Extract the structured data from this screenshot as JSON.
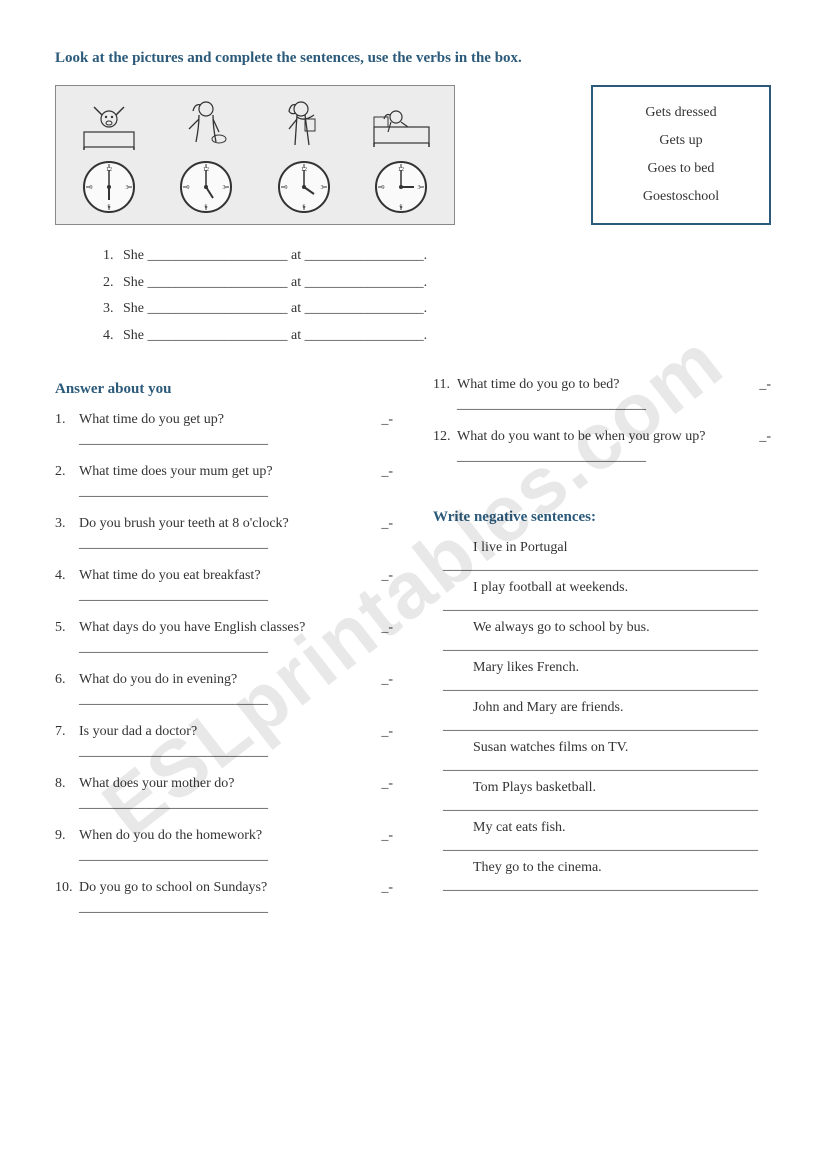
{
  "title": "Look at the pictures and complete the sentences, use the verbs in the box.",
  "verb_box": [
    "Gets dressed",
    "Gets up",
    "Goes to bed",
    "Goestoschool"
  ],
  "clocks": [
    {
      "hour": 6,
      "minute": 0
    },
    {
      "hour": 7,
      "minute": 0
    },
    {
      "hour": 8,
      "minute": 0
    },
    {
      "hour": 9,
      "minute": 0
    }
  ],
  "fill_sentences": [
    {
      "n": "1.",
      "text": "She ____________________ at _________________."
    },
    {
      "n": "2.",
      "text": "She ____________________ at _________________."
    },
    {
      "n": "3.",
      "text": "She ____________________ at _________________."
    },
    {
      "n": "4.",
      "text": "She ____________________ at _________________."
    }
  ],
  "section2_title": "Answer about you",
  "questions_left": [
    {
      "n": "1.",
      "q": "What time do you get up?"
    },
    {
      "n": "2.",
      "q": "What time does your mum get up?"
    },
    {
      "n": "3.",
      "q": "Do you brush your teeth at 8 o'clock?"
    },
    {
      "n": "4.",
      "q": "What time do you eat breakfast?"
    },
    {
      "n": "5.",
      "q": "What days do you have English classes?"
    },
    {
      "n": "6.",
      "q": "What do you do in evening?"
    },
    {
      "n": "7.",
      "q": "Is your dad a doctor?"
    },
    {
      "n": "8.",
      "q": "What does your mother do?"
    },
    {
      "n": "9.",
      "q": "When do you do the homework?"
    },
    {
      "n": "10.",
      "q": "Do you go to school on Sundays?"
    }
  ],
  "questions_right": [
    {
      "n": "11.",
      "q": "What time do you go to bed?"
    },
    {
      "n": "12.",
      "q": "What do you want to be when you grow up?"
    }
  ],
  "section3_title": "Write negative sentences:",
  "negatives": [
    "I live in Portugal",
    "I play football at weekends.",
    "We always go to school by bus.",
    "Mary likes French.",
    "John and Mary are friends.",
    "Susan watches films on TV.",
    "Tom Plays basketball.",
    "My cat eats fish.",
    "They go to the cinema."
  ],
  "blank_line": "___________________________",
  "long_line": "_____________________________________________",
  "dash": "_-",
  "watermark": "ESLprintables.com",
  "colors": {
    "heading": "#2b5a7a",
    "text": "#333333",
    "box_bg": "#ececec",
    "border": "#888888"
  }
}
